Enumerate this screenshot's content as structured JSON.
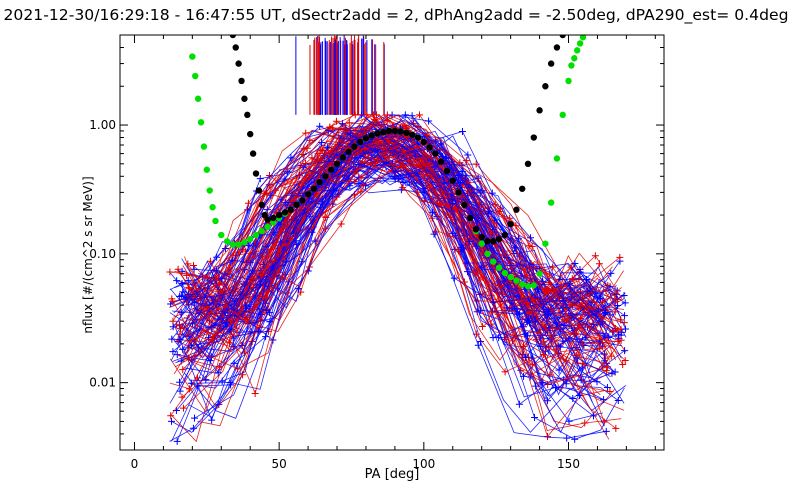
{
  "chart_data": {
    "type": "scatter",
    "title": "2021-12-30/16:29:18 - 16:47:55 UT, dSectr2add = 2, dPhAng2add = -2.50deg, dPA290_est=   0.4deg",
    "xlabel": "PA [deg]",
    "ylabel": "nflux [#/(cm^2 s sr MeV)]",
    "xlim": [
      -5,
      183
    ],
    "ylim": [
      0.003,
      5.0
    ],
    "yscale": "log",
    "xticks": [
      0,
      50,
      100,
      150
    ],
    "xtick_labels": [
      "0",
      "50",
      "100",
      "150"
    ],
    "yticks": [
      0.01,
      0.1,
      1.0
    ],
    "ytick_labels": [
      "0.01",
      "0.10",
      "1.00"
    ],
    "grid": false,
    "legend": "none",
    "colors": {
      "series_red": "#e00000",
      "series_blue": "#0000ff",
      "fit_green": "#00e000",
      "fit_black": "#000000"
    },
    "series": [
      {
        "type": "line",
        "color": "green",
        "marker": "dot",
        "x": [
          20,
          21,
          22,
          23,
          24,
          25,
          26,
          27,
          28,
          30,
          32,
          34,
          36,
          38,
          40,
          42,
          44,
          46,
          48,
          50,
          52,
          54,
          56,
          58,
          60,
          62,
          64,
          66,
          68,
          70,
          72,
          74,
          76,
          78,
          80,
          82,
          84,
          86,
          88,
          90,
          92,
          94,
          96,
          98,
          100,
          102,
          104,
          106,
          108,
          110,
          112,
          114,
          116,
          118,
          120,
          122,
          124,
          126,
          128,
          130,
          132,
          134,
          136,
          138,
          140,
          142,
          144,
          146,
          148,
          150,
          151,
          152,
          153,
          154,
          155
        ],
        "values": [
          3.4,
          2.4,
          1.6,
          1.05,
          0.68,
          0.45,
          0.31,
          0.23,
          0.18,
          0.14,
          0.125,
          0.118,
          0.118,
          0.123,
          0.13,
          0.14,
          0.15,
          0.162,
          0.175,
          0.19,
          0.205,
          0.22,
          0.24,
          0.26,
          0.29,
          0.32,
          0.36,
          0.4,
          0.45,
          0.5,
          0.56,
          0.62,
          0.68,
          0.74,
          0.79,
          0.83,
          0.86,
          0.88,
          0.9,
          0.9,
          0.89,
          0.87,
          0.84,
          0.8,
          0.74,
          0.67,
          0.6,
          0.52,
          0.44,
          0.37,
          0.3,
          0.24,
          0.19,
          0.15,
          0.12,
          0.1,
          0.087,
          0.078,
          0.071,
          0.066,
          0.062,
          0.058,
          0.056,
          0.057,
          0.07,
          0.12,
          0.25,
          0.55,
          1.2,
          2.2,
          2.9,
          3.3,
          3.8,
          4.3,
          4.8
        ]
      },
      {
        "type": "line",
        "color": "black",
        "marker": "dot",
        "x": [
          34,
          35,
          36,
          37,
          38,
          39,
          40,
          41,
          42,
          43,
          44,
          45,
          46,
          48,
          50,
          52,
          54,
          56,
          58,
          60,
          62,
          64,
          66,
          68,
          70,
          72,
          74,
          76,
          78,
          80,
          82,
          84,
          86,
          88,
          90,
          92,
          94,
          96,
          98,
          100,
          102,
          104,
          106,
          108,
          110,
          112,
          114,
          116,
          118,
          120,
          122,
          124,
          126,
          128,
          130,
          132,
          134,
          136,
          138,
          140,
          142,
          144,
          146,
          148
        ],
        "values": [
          5,
          4.0,
          3.0,
          2.2,
          1.6,
          1.2,
          0.85,
          0.6,
          0.42,
          0.31,
          0.24,
          0.2,
          0.185,
          0.19,
          0.2,
          0.21,
          0.22,
          0.24,
          0.26,
          0.29,
          0.32,
          0.36,
          0.4,
          0.45,
          0.5,
          0.56,
          0.62,
          0.68,
          0.74,
          0.79,
          0.83,
          0.86,
          0.88,
          0.9,
          0.9,
          0.89,
          0.87,
          0.84,
          0.8,
          0.74,
          0.67,
          0.6,
          0.52,
          0.44,
          0.37,
          0.3,
          0.24,
          0.19,
          0.155,
          0.135,
          0.125,
          0.125,
          0.13,
          0.14,
          0.17,
          0.22,
          0.32,
          0.5,
          0.8,
          1.3,
          2.0,
          3.0,
          4.0,
          5.0
        ]
      }
    ]
  }
}
